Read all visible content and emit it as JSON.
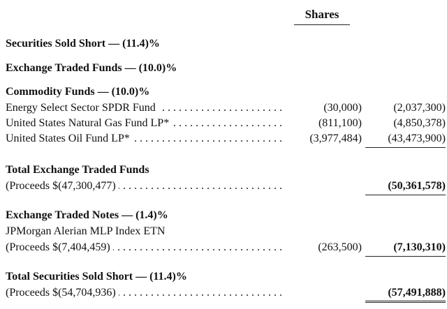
{
  "header": {
    "shares_label": "Shares"
  },
  "sections": {
    "securities_sold_short": "Securities Sold Short — (11.4)%",
    "exchange_traded_funds": "Exchange Traded Funds — (10.0)%",
    "commodity_funds": "Commodity Funds — (10.0)%"
  },
  "rows": [
    {
      "name": "Energy Select Sector SPDR Fund",
      "shares": "(30,000)",
      "value": "(2,037,300)"
    },
    {
      "name": "United States Natural Gas Fund LP*",
      "shares": "(811,100)",
      "value": "(4,850,378)"
    },
    {
      "name": "United States Oil Fund LP*",
      "shares": "(3,977,484)",
      "value": "(43,473,900)"
    }
  ],
  "total_etf": {
    "title": "Total Exchange Traded Funds",
    "proceeds": "(Proceeds $(47,300,477)",
    "value": "(50,361,578)"
  },
  "etn": {
    "title": "Exchange Traded Notes — (1.4)%",
    "name": "JPMorgan Alerian MLP Index ETN",
    "proceeds": "(Proceeds $(7,404,459)",
    "shares": "(263,500)",
    "value": "(7,130,310)"
  },
  "total_short": {
    "title": "Total Securities Sold Short — (11.4)%",
    "proceeds": "(Proceeds $(54,704,936)",
    "value": "(57,491,888)"
  }
}
